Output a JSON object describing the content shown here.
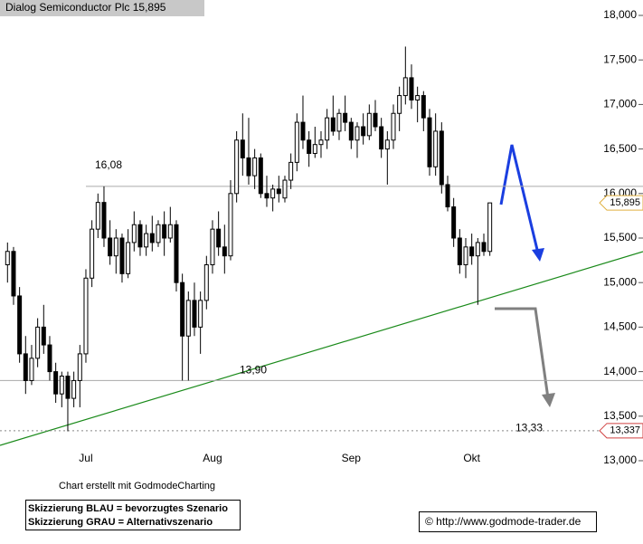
{
  "chart_data": {
    "type": "candlestick",
    "title": "Dialog Semiconductor Plc 15,895",
    "categories": [
      null,
      null,
      null,
      null,
      null,
      null,
      null,
      null,
      null,
      null,
      null,
      null,
      null,
      "Jul",
      null,
      null,
      null,
      null,
      null,
      null,
      null,
      null,
      null,
      null,
      null,
      null,
      null,
      null,
      null,
      null,
      null,
      null,
      null,
      null,
      "Aug",
      null,
      null,
      null,
      null,
      null,
      null,
      null,
      null,
      null,
      null,
      null,
      null,
      null,
      null,
      null,
      null,
      null,
      null,
      null,
      null,
      null,
      null,
      "Sep",
      null,
      null,
      null,
      null,
      null,
      null,
      null,
      null,
      null,
      null,
      null,
      null,
      null,
      null,
      null,
      null,
      null,
      null,
      null,
      "Okt",
      null,
      null,
      null,
      null
    ],
    "series": [
      {
        "open": [
          15.2,
          15.35,
          14.85,
          14.2,
          13.9,
          14.15,
          14.5,
          14.3,
          14.0,
          13.75,
          13.95,
          13.7,
          13.9,
          14.2,
          15.05,
          15.6,
          15.9,
          15.5,
          15.3,
          15.5,
          15.1,
          15.45,
          15.65,
          15.4,
          15.55,
          15.45,
          15.65,
          15.5,
          15.65,
          15.0,
          14.4,
          14.8,
          14.5,
          14.8,
          15.2,
          15.6,
          15.4,
          15.3,
          16.0,
          16.6,
          16.4,
          16.2,
          16.4,
          16.0,
          15.95,
          16.05,
          15.95,
          16.15,
          16.35,
          16.8,
          16.6,
          16.45,
          16.55,
          16.6,
          16.85,
          16.7,
          16.9,
          16.8,
          16.6,
          16.75,
          16.65,
          16.9,
          16.75,
          16.5,
          16.6,
          16.9,
          17.1,
          17.3,
          17.05,
          17.1,
          16.85,
          16.3,
          16.7,
          16.1,
          15.85,
          15.5,
          15.2,
          15.4,
          15.3,
          15.45,
          15.35
        ],
        "high": [
          15.45,
          15.4,
          14.95,
          14.4,
          14.3,
          14.6,
          14.75,
          14.4,
          14.1,
          14.0,
          14.0,
          14.0,
          14.3,
          15.15,
          15.7,
          16.0,
          16.08,
          15.7,
          15.6,
          15.55,
          15.6,
          15.8,
          15.7,
          15.65,
          15.75,
          15.7,
          15.8,
          15.85,
          15.7,
          15.1,
          14.9,
          15.0,
          14.9,
          15.3,
          15.7,
          15.8,
          15.65,
          16.15,
          16.7,
          16.9,
          16.85,
          16.5,
          16.45,
          16.2,
          16.1,
          16.2,
          16.2,
          16.45,
          16.9,
          17.1,
          16.7,
          16.75,
          16.7,
          16.95,
          17.1,
          16.95,
          17.1,
          16.85,
          16.8,
          16.9,
          17.0,
          17.05,
          16.85,
          16.7,
          17.0,
          17.2,
          17.65,
          17.45,
          17.2,
          17.15,
          16.95,
          16.9,
          16.8,
          16.2,
          15.95,
          15.6,
          15.5,
          15.55,
          15.5,
          15.55,
          15.895
        ],
        "low": [
          15.0,
          14.75,
          14.1,
          13.75,
          13.85,
          14.05,
          14.2,
          13.9,
          13.65,
          13.6,
          13.33,
          13.6,
          13.6,
          14.1,
          14.95,
          15.5,
          15.4,
          15.2,
          15.1,
          15.0,
          15.05,
          15.35,
          15.3,
          15.3,
          15.35,
          15.4,
          15.3,
          15.45,
          14.9,
          13.9,
          13.9,
          14.4,
          14.2,
          14.7,
          15.1,
          15.3,
          15.1,
          15.25,
          15.9,
          16.2,
          16.1,
          16.05,
          15.95,
          15.85,
          15.8,
          15.9,
          15.9,
          16.05,
          16.25,
          16.5,
          16.3,
          16.4,
          16.4,
          16.5,
          16.65,
          16.6,
          16.7,
          16.5,
          16.4,
          16.55,
          16.6,
          16.7,
          16.4,
          16.1,
          16.5,
          16.7,
          17.0,
          16.95,
          16.8,
          16.7,
          16.2,
          16.2,
          16.0,
          15.8,
          15.4,
          15.1,
          15.05,
          15.2,
          14.75,
          15.3,
          15.3
        ],
        "close": [
          15.35,
          14.85,
          14.2,
          13.9,
          14.15,
          14.5,
          14.3,
          14.0,
          13.75,
          13.95,
          13.7,
          13.9,
          14.2,
          15.05,
          15.6,
          15.9,
          15.5,
          15.3,
          15.5,
          15.1,
          15.45,
          15.65,
          15.4,
          15.55,
          15.45,
          15.65,
          15.5,
          15.65,
          15.0,
          14.4,
          14.8,
          14.5,
          14.8,
          15.2,
          15.6,
          15.4,
          15.3,
          16.0,
          16.6,
          16.4,
          16.2,
          16.4,
          16.0,
          15.95,
          16.05,
          16.0,
          16.15,
          16.35,
          16.8,
          16.6,
          16.45,
          16.55,
          16.6,
          16.85,
          16.7,
          16.9,
          16.8,
          16.6,
          16.75,
          16.65,
          16.9,
          16.75,
          16.5,
          16.6,
          16.9,
          17.1,
          17.3,
          17.05,
          17.1,
          16.85,
          16.3,
          16.7,
          16.1,
          15.85,
          15.5,
          15.2,
          15.4,
          15.3,
          15.45,
          15.35,
          15.895
        ],
        "up_color": "#ffffff",
        "down_color": "#000000",
        "color": "#000000"
      }
    ],
    "ylim": [
      12.888,
      18.173
    ],
    "yticks": [
      {
        "value": 13,
        "label": "13,000"
      },
      {
        "value": 13.5,
        "label": "13,500"
      },
      {
        "value": 14,
        "label": "14,000"
      },
      {
        "value": 14.5,
        "label": "14,500"
      },
      {
        "value": 15,
        "label": "15,000"
      },
      {
        "value": 15.5,
        "label": "15,500"
      },
      {
        "value": 16,
        "label": "16,000"
      },
      {
        "value": 16.5,
        "label": "16,500"
      },
      {
        "value": 17,
        "label": "17,000"
      },
      {
        "value": 17.5,
        "label": "17,500"
      },
      {
        "value": 18,
        "label": "18,000"
      }
    ],
    "levels": [
      {
        "text": "16,08",
        "value": 16.08
      },
      {
        "text": "13,90",
        "value": 13.9
      }
    ],
    "target_label": {
      "text": "13,33",
      "value": 13.33
    },
    "last_price": {
      "value": 15.895,
      "label": "15,895"
    },
    "marker": {
      "value": 13.337,
      "label": "13,337"
    },
    "credit": "Chart erstellt mit GodmodeCharting",
    "legend_lines": [
      "Skizzierung BLAU = bevorzugtes Szenario",
      "Skizzierung GRAU = Alternativszenario"
    ],
    "source": "© http://www.godmode-trader.de"
  }
}
